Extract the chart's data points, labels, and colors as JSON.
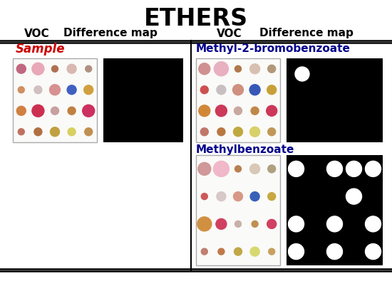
{
  "title": "ETHERS",
  "title_fontsize": 24,
  "title_fontweight": "bold",
  "col_header_left_voc": "VOC",
  "col_header_left_diff": "Difference map",
  "col_header_right_voc": "VOC",
  "col_header_right_diff": "Difference map",
  "header_fontsize": 11,
  "header_fontweight": "bold",
  "sample_label": "Sample",
  "sample_label_color": "#cc0000",
  "sample_label_fontsize": 12,
  "compound1_label": "Methyl-2-bromobenzoate",
  "compound1_color": "#00008B",
  "compound1_fontsize": 11,
  "compound2_label": "Methylbenzoate",
  "compound2_color": "#00008B",
  "compound2_fontsize": 11,
  "dot_array_sample": [
    [
      "#c06880",
      "#e8a8b8",
      "#b07050",
      "#d8b8b0",
      "#b09080"
    ],
    [
      "#d09060",
      "#d0c0c0",
      "#d89090",
      "#4060c0",
      "#d0a040"
    ],
    [
      "#d08040",
      "#cc3050",
      "#c8a0a0",
      "#c08040",
      "#cc3060"
    ],
    [
      "#c07060",
      "#b07040",
      "#c0a040",
      "#d8d060",
      "#c09050"
    ]
  ],
  "dot_sizes_sample": [
    [
      13,
      17,
      9,
      13,
      9
    ],
    [
      9,
      11,
      15,
      13,
      13
    ],
    [
      13,
      17,
      11,
      11,
      17
    ],
    [
      9,
      11,
      13,
      11,
      11
    ]
  ],
  "dot_array2": [
    [
      "#d09090",
      "#e8b0c0",
      "#b07848",
      "#d8c0b0",
      "#b09878"
    ],
    [
      "#cc5050",
      "#c8c0c0",
      "#d09080",
      "#3858b8",
      "#c8a038"
    ],
    [
      "#d08838",
      "#cc3858",
      "#c8a8a0",
      "#c08848",
      "#cc3858"
    ],
    [
      "#c07868",
      "#b87840",
      "#c0a840",
      "#d8d068",
      "#c09858"
    ]
  ],
  "dot_sizes2": [
    [
      16,
      20,
      9,
      14,
      11
    ],
    [
      11,
      13,
      15,
      15,
      13
    ],
    [
      16,
      16,
      11,
      11,
      15
    ],
    [
      11,
      11,
      13,
      14,
      11
    ]
  ],
  "dot_array3": [
    [
      "#d09898",
      "#f0b8c8",
      "#b88050",
      "#d8c8b8",
      "#b0a080"
    ],
    [
      "#cc5858",
      "#d8c8c8",
      "#d89888",
      "#3860b8",
      "#c8a840"
    ],
    [
      "#d09040",
      "#d04060",
      "#c8b0a8",
      "#c09050",
      "#d04060"
    ],
    [
      "#c08070",
      "#c07848",
      "#c0a848",
      "#d8d870",
      "#c8a060"
    ]
  ],
  "dot_sizes3": [
    [
      18,
      22,
      9,
      14,
      11
    ],
    [
      9,
      13,
      13,
      13,
      11
    ],
    [
      20,
      15,
      9,
      9,
      13
    ],
    [
      9,
      9,
      11,
      13,
      9
    ]
  ],
  "diff_map3_dots": [
    {
      "col": 0,
      "row": 0
    },
    {
      "col": 2,
      "row": 0
    },
    {
      "col": 3,
      "row": 0
    },
    {
      "col": 4,
      "row": 0
    },
    {
      "col": 3,
      "row": 1
    },
    {
      "col": 0,
      "row": 2
    },
    {
      "col": 2,
      "row": 2
    },
    {
      "col": 4,
      "row": 2
    },
    {
      "col": 0,
      "row": 3
    },
    {
      "col": 2,
      "row": 3
    },
    {
      "col": 4,
      "row": 3
    }
  ],
  "bg_color": "#ffffff"
}
